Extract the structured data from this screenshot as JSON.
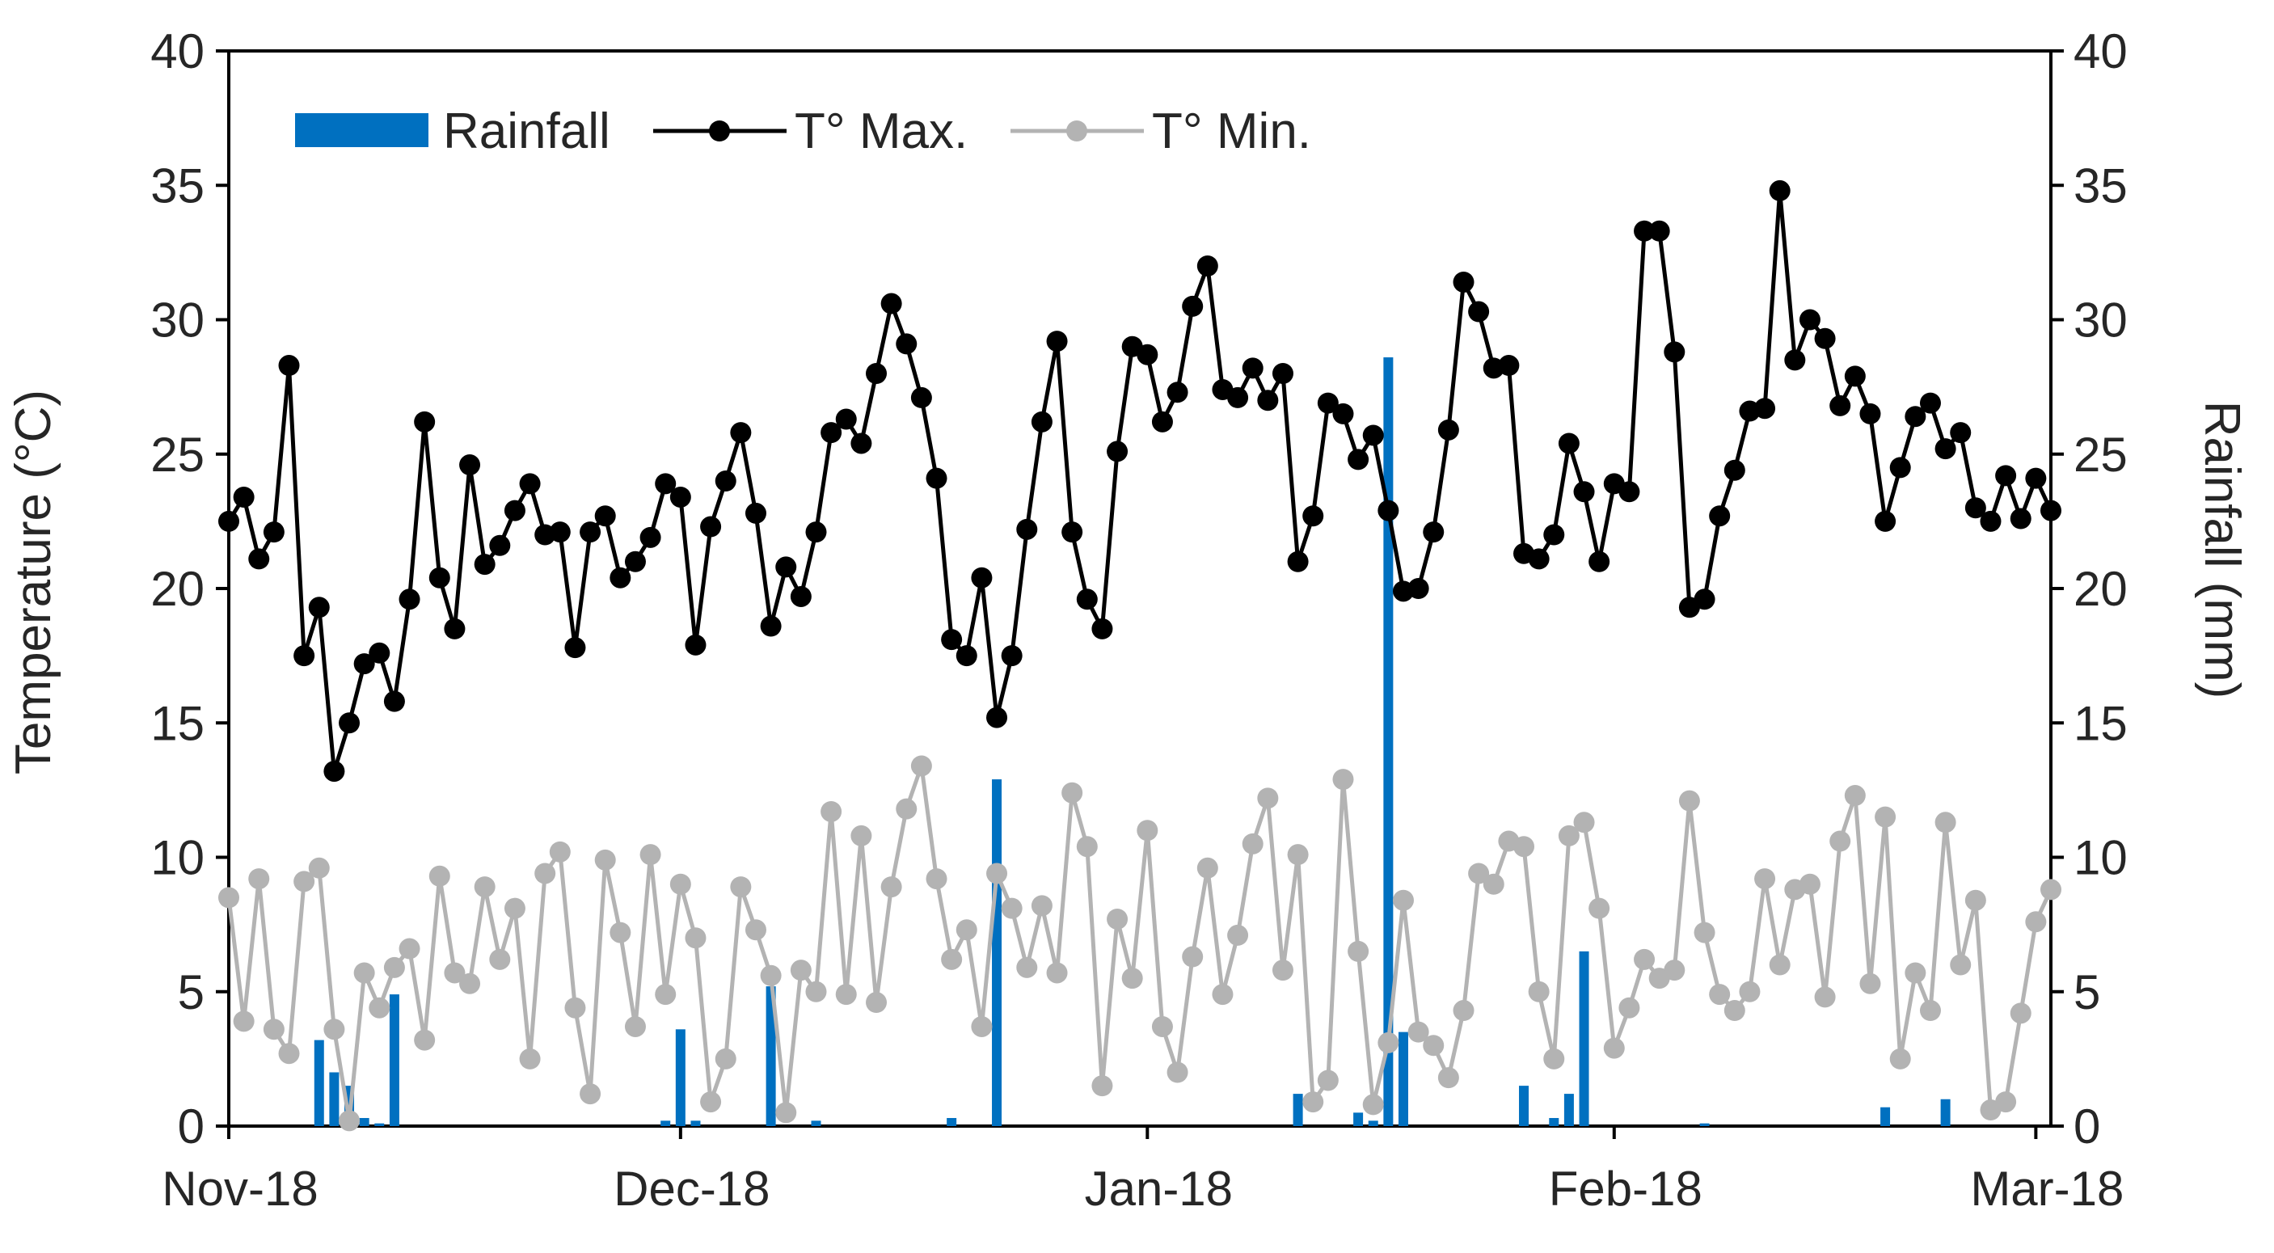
{
  "chart_data": {
    "type": "line+bar",
    "title": "",
    "left_axis": {
      "label": "Temperature (°C)",
      "ylim": [
        0,
        40
      ],
      "ticks": [
        "0",
        "5",
        "10",
        "15",
        "20",
        "25",
        "30",
        "35",
        "40"
      ]
    },
    "right_axis": {
      "label": "Rainfall (mm)",
      "ylim": [
        0,
        40
      ],
      "ticks": [
        "0",
        "5",
        "10",
        "15",
        "20",
        "25",
        "30",
        "35",
        "40"
      ]
    },
    "x_axis": {
      "label": "",
      "day_range": [
        0,
        121
      ],
      "ticks": [
        {
          "day": 0,
          "label": "Nov-18"
        },
        {
          "day": 30,
          "label": "Dec-18"
        },
        {
          "day": 61,
          "label": "Jan-18"
        },
        {
          "day": 92,
          "label": "Feb-18"
        },
        {
          "day": 120,
          "label": "Mar-18"
        }
      ]
    },
    "legend": {
      "position": "top-left",
      "items": [
        {
          "label": "Rainfall",
          "kind": "bar"
        },
        {
          "label": "T° Max.",
          "kind": "line"
        },
        {
          "label": "T° Min.",
          "kind": "line"
        }
      ]
    },
    "series": [
      {
        "name": "T° Max.",
        "color": "#000000",
        "values": [
          22.5,
          23.4,
          21.1,
          22.1,
          28.3,
          17.5,
          19.3,
          13.2,
          15.0,
          17.2,
          17.6,
          15.8,
          19.6,
          26.2,
          20.4,
          18.5,
          24.6,
          20.9,
          21.6,
          22.9,
          23.9,
          22.0,
          22.1,
          17.8,
          22.1,
          22.7,
          20.4,
          21.0,
          21.9,
          23.9,
          23.4,
          17.9,
          22.3,
          24.0,
          25.8,
          22.8,
          18.6,
          20.8,
          19.7,
          22.1,
          25.8,
          26.3,
          25.4,
          28.0,
          30.6,
          29.1,
          27.1,
          24.1,
          18.1,
          17.5,
          20.4,
          15.2,
          17.5,
          22.2,
          26.2,
          29.2,
          22.1,
          19.6,
          18.5,
          25.1,
          29.0,
          28.7,
          26.2,
          27.3,
          30.5,
          32.0,
          27.4,
          27.1,
          28.2,
          27.0,
          28.0,
          21.0,
          22.7,
          26.9,
          26.5,
          24.8,
          25.7,
          22.9,
          19.9,
          20.0,
          22.1,
          25.9,
          31.4,
          30.3,
          28.2,
          28.3,
          21.3,
          21.1,
          22.0,
          25.4,
          23.6,
          21.0,
          23.9,
          23.6,
          33.3,
          33.3,
          28.8,
          19.3,
          19.6,
          22.7,
          24.4,
          26.6,
          26.7,
          34.8,
          28.5,
          30.0,
          29.3,
          26.8,
          27.9,
          26.5,
          22.5,
          24.5,
          26.4,
          26.9,
          25.2,
          25.8,
          23.0,
          22.5,
          24.2,
          22.6,
          24.1,
          22.9
        ]
      },
      {
        "name": "T° Min.",
        "color": "#B3B3B3",
        "values": [
          8.5,
          3.9,
          9.2,
          3.6,
          2.7,
          9.1,
          9.6,
          3.6,
          0.2,
          5.7,
          4.4,
          5.9,
          6.6,
          3.2,
          9.3,
          5.7,
          5.3,
          8.9,
          6.2,
          8.1,
          2.5,
          9.4,
          10.2,
          4.4,
          1.2,
          9.9,
          7.2,
          3.7,
          10.1,
          4.9,
          9.0,
          7.0,
          0.9,
          2.5,
          8.9,
          7.3,
          5.6,
          0.5,
          5.8,
          5.0,
          11.7,
          4.9,
          10.8,
          4.6,
          8.9,
          11.8,
          13.4,
          9.2,
          6.2,
          7.3,
          3.7,
          9.4,
          8.1,
          5.9,
          8.2,
          5.7,
          12.4,
          10.4,
          1.5,
          7.7,
          5.5,
          11.0,
          3.7,
          2.0,
          6.3,
          9.6,
          4.9,
          7.1,
          10.5,
          12.2,
          5.8,
          10.1,
          0.9,
          1.7,
          12.9,
          6.5,
          0.8,
          3.1,
          8.4,
          3.5,
          3.0,
          1.8,
          4.3,
          9.4,
          9.0,
          10.6,
          10.4,
          5.0,
          2.5,
          10.8,
          11.3,
          8.1,
          2.9,
          4.4,
          6.2,
          5.5,
          5.8,
          12.1,
          7.2,
          4.9,
          4.3,
          5.0,
          9.2,
          6.0,
          8.8,
          9.0,
          4.8,
          10.6,
          12.3,
          5.3,
          11.5,
          2.5,
          5.7,
          4.3,
          11.3,
          6.0,
          8.4,
          0.6,
          0.9,
          4.2,
          7.6,
          8.8
        ]
      },
      {
        "name": "Rainfall",
        "color": "#0070C0",
        "points": [
          [
            6,
            3.2
          ],
          [
            7,
            2.0
          ],
          [
            8,
            1.5
          ],
          [
            9,
            0.3
          ],
          [
            10,
            0.1
          ],
          [
            11,
            4.9
          ],
          [
            29,
            0.2
          ],
          [
            30,
            3.6
          ],
          [
            31,
            0.2
          ],
          [
            36,
            5.2
          ],
          [
            39,
            0.2
          ],
          [
            48,
            0.3
          ],
          [
            51,
            12.9
          ],
          [
            71,
            1.2
          ],
          [
            75,
            0.5
          ],
          [
            76,
            0.2
          ],
          [
            77,
            28.6
          ],
          [
            78,
            3.5
          ],
          [
            86,
            1.5
          ],
          [
            88,
            0.3
          ],
          [
            89,
            1.2
          ],
          [
            90,
            6.5
          ],
          [
            98,
            0.1
          ],
          [
            110,
            0.7
          ],
          [
            114,
            1.0
          ]
        ]
      }
    ]
  }
}
